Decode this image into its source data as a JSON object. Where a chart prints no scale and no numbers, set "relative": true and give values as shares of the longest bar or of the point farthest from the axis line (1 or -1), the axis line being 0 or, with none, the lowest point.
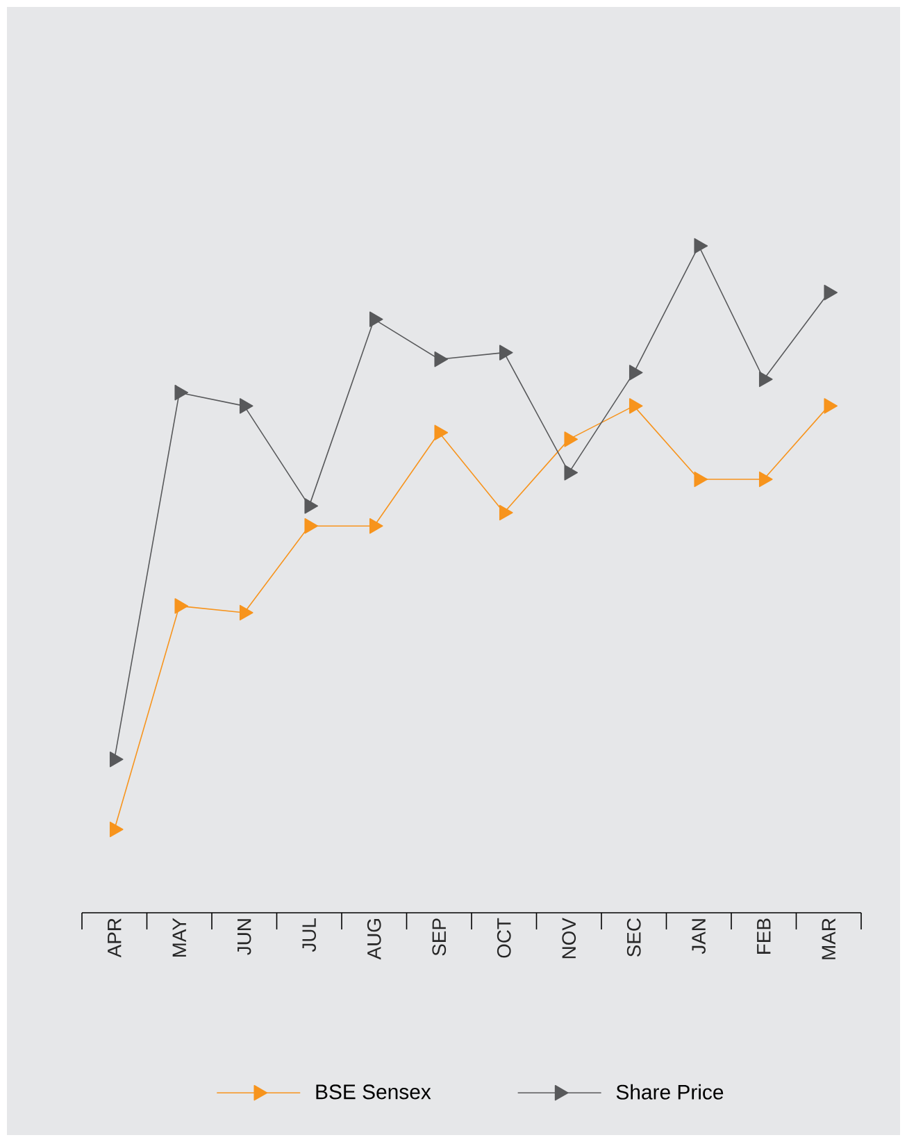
{
  "chart_data": {
    "type": "line",
    "relative": true,
    "categories": [
      "APR",
      "MAY",
      "JUN",
      "JUL",
      "AUG",
      "SEP",
      "OCT",
      "NOV",
      "SEC",
      "JAN",
      "FEB",
      "MAR"
    ],
    "series": [
      {
        "name": "BSE Sensex",
        "color": "#f7941d",
        "values": [
          0.125,
          0.46,
          0.45,
          0.58,
          0.58,
          0.72,
          0.6,
          0.71,
          0.76,
          0.65,
          0.65,
          0.76
        ]
      },
      {
        "name": "Share Price",
        "color": "#58595b",
        "values": [
          0.23,
          0.78,
          0.76,
          0.61,
          0.89,
          0.83,
          0.84,
          0.66,
          0.81,
          1.0,
          0.8,
          0.93
        ]
      }
    ],
    "marker": "triangle",
    "legend": "bottom"
  }
}
